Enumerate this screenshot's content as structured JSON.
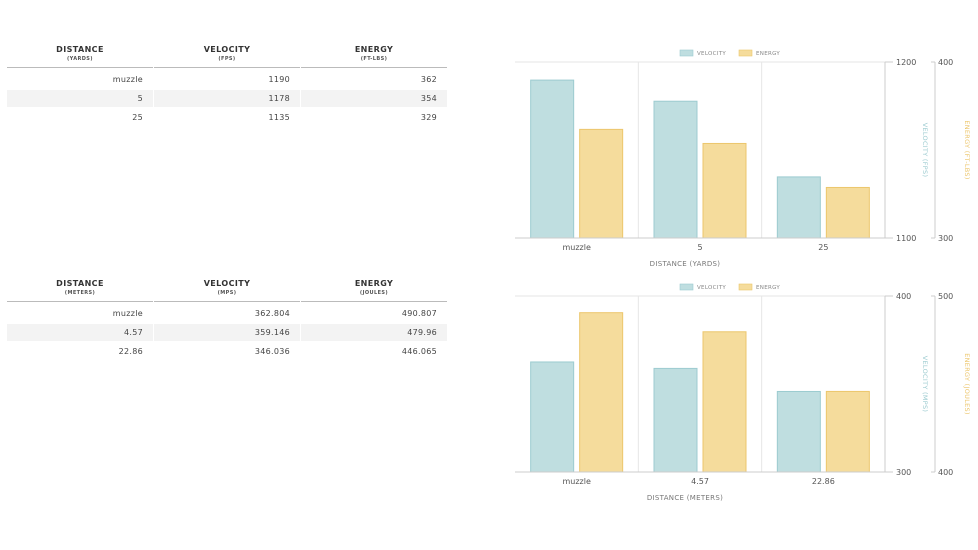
{
  "table_imperial": {
    "headers": [
      {
        "main": "DISTANCE",
        "sub": "(YARDS)"
      },
      {
        "main": "VELOCITY",
        "sub": "(FPS)"
      },
      {
        "main": "ENERGY",
        "sub": "(FT-LBS)"
      }
    ],
    "rows": [
      [
        "muzzle",
        "1190",
        "362"
      ],
      [
        "5",
        "1178",
        "354"
      ],
      [
        "25",
        "1135",
        "329"
      ]
    ]
  },
  "table_metric": {
    "headers": [
      {
        "main": "DISTANCE",
        "sub": "(METERS)"
      },
      {
        "main": "VELOCITY",
        "sub": "(MPS)"
      },
      {
        "main": "ENERGY",
        "sub": "(JOULES)"
      }
    ],
    "rows": [
      [
        "muzzle",
        "362.804",
        "490.807"
      ],
      [
        "4.57",
        "359.146",
        "479.96"
      ],
      [
        "22.86",
        "346.036",
        "446.065"
      ]
    ]
  },
  "chart_data": [
    {
      "type": "bar",
      "categories": [
        "muzzle",
        "5",
        "25"
      ],
      "xlabel": "DISTANCE (YARDS)",
      "legend_placement": "top-center",
      "series": [
        {
          "name": "VELOCITY",
          "values": [
            1190,
            1178,
            1135
          ],
          "color": "#bfdee0",
          "stroke": "#9ccbd0",
          "axis": "left"
        },
        {
          "name": "ENERGY",
          "values": [
            362,
            354,
            329
          ],
          "color": "#f5dc9c",
          "stroke": "#ecc66c",
          "axis": "right"
        }
      ],
      "axes": {
        "left": {
          "label": "VELOCITY (FPS)",
          "min": 1100,
          "max": 1200,
          "ticks": [
            "1100",
            "1200"
          ],
          "color": "#9ccbd0"
        },
        "right": {
          "label": "ENERGY (FT-LBS)",
          "min": 300,
          "max": 400,
          "ticks": [
            "300",
            "400"
          ],
          "color": "#ecc66c"
        }
      }
    },
    {
      "type": "bar",
      "categories": [
        "muzzle",
        "4.57",
        "22.86"
      ],
      "xlabel": "DISTANCE (METERS)",
      "legend_placement": "top-center",
      "series": [
        {
          "name": "VELOCITY",
          "values": [
            362.804,
            359.146,
            346.036
          ],
          "color": "#bfdee0",
          "stroke": "#9ccbd0",
          "axis": "left"
        },
        {
          "name": "ENERGY",
          "values": [
            490.807,
            479.96,
            446.065
          ],
          "color": "#f5dc9c",
          "stroke": "#ecc66c",
          "axis": "right"
        }
      ],
      "axes": {
        "left": {
          "label": "VELOCITY (MPS)",
          "min": 300,
          "max": 400,
          "ticks": [
            "300",
            "400"
          ],
          "color": "#9ccbd0"
        },
        "right": {
          "label": "ENERGY (JOULES)",
          "min": 400,
          "max": 500,
          "ticks": [
            "400",
            "500"
          ],
          "color": "#ecc66c"
        }
      }
    }
  ]
}
